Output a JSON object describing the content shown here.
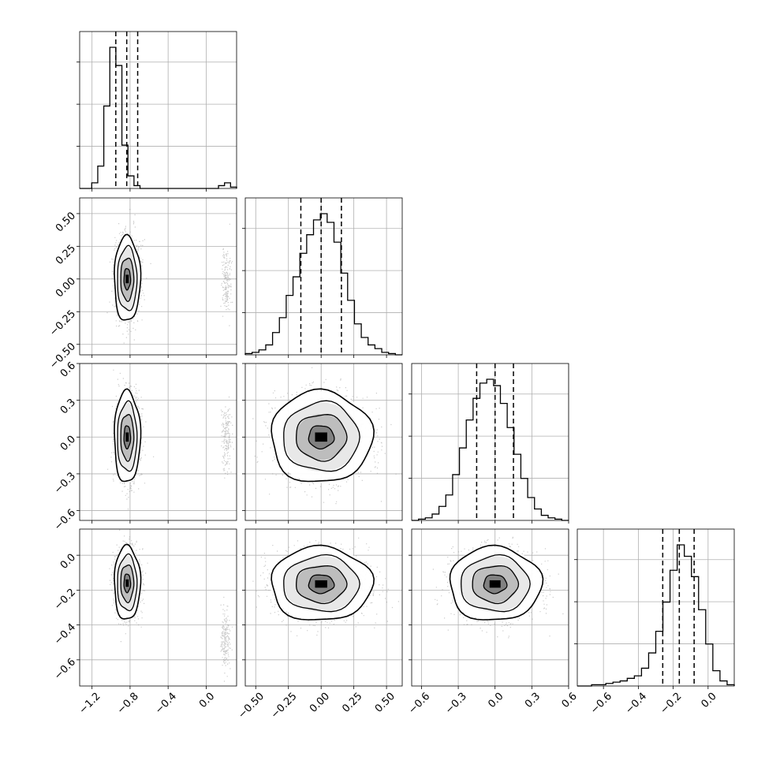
{
  "chart_data": {
    "type": "corner",
    "title": "",
    "parameters": [
      {
        "index": 0,
        "range": [
          -1.33,
          0.32
        ],
        "ticks": [
          -1.2,
          -0.8,
          -0.4,
          0.0
        ],
        "tick_labels": [
          "−1.2",
          "−0.8",
          "−0.4",
          "0.0"
        ],
        "quantiles": [
          -0.95,
          -0.835,
          -0.72
        ],
        "histogram": [
          0,
          0,
          4,
          16,
          59,
          101,
          88,
          31,
          9,
          2,
          0,
          0,
          0,
          0,
          0,
          0,
          0,
          0,
          0,
          0,
          0,
          0,
          0,
          2,
          4,
          1
        ]
      },
      {
        "index": 1,
        "range": [
          -0.58,
          0.62
        ],
        "ticks": [
          -0.5,
          -0.25,
          0.0,
          0.25,
          0.5
        ],
        "tick_labels": [
          "−0.50",
          "−0.25",
          "0.00",
          "0.25",
          "0.50"
        ],
        "quantiles": [
          -0.155,
          0.0,
          0.155
        ],
        "histogram": [
          1,
          2,
          4,
          8,
          18,
          30,
          48,
          63,
          82,
          97,
          109,
          114,
          107,
          91,
          66,
          44,
          25,
          14,
          8,
          5,
          2,
          1,
          0
        ]
      },
      {
        "index": 2,
        "range": [
          -0.68,
          0.6
        ],
        "ticks": [
          -0.6,
          -0.3,
          0.0,
          0.3,
          0.6
        ],
        "tick_labels": [
          "−0.6",
          "−0.3",
          "0.0",
          "0.3",
          "0.6"
        ],
        "quantiles": [
          -0.15,
          0.0,
          0.15
        ],
        "histogram": [
          0,
          1,
          2,
          5,
          11,
          20,
          36,
          57,
          79,
          96,
          108,
          111,
          106,
          92,
          73,
          52,
          33,
          18,
          9,
          4,
          2,
          1,
          0
        ]
      },
      {
        "index": 3,
        "range": [
          -0.75,
          0.15
        ],
        "ticks": [
          -0.6,
          -0.4,
          -0.2,
          0.0
        ],
        "tick_labels": [
          "−0.6",
          "−0.4",
          "−0.2",
          "0.0"
        ],
        "quantiles": [
          -0.26,
          -0.165,
          -0.08
        ],
        "histogram": [
          0,
          0,
          1,
          1,
          2,
          3,
          4,
          6,
          8,
          14,
          26,
          43,
          66,
          91,
          111,
          102,
          86,
          60,
          33,
          12,
          4,
          1
        ]
      }
    ],
    "pairs": [
      {
        "x": 0,
        "y": 1,
        "center": [
          -0.83,
          0.0
        ],
        "sigma": [
          0.055,
          0.13
        ],
        "outlier": {
          "x": 0.21,
          "y": -0.02,
          "sx": 0.025,
          "sy": 0.13,
          "share": 0.03
        }
      },
      {
        "x": 0,
        "y": 2,
        "center": [
          -0.83,
          0.0
        ],
        "sigma": [
          0.055,
          0.15
        ],
        "outlier": {
          "x": 0.21,
          "y": 0.0,
          "sx": 0.025,
          "sy": 0.14,
          "share": 0.03
        }
      },
      {
        "x": 1,
        "y": 2,
        "center": [
          0.0,
          0.0
        ],
        "sigma": [
          0.155,
          0.15
        ]
      },
      {
        "x": 0,
        "y": 3,
        "center": [
          -0.83,
          -0.16
        ],
        "sigma": [
          0.055,
          0.085
        ],
        "outlier": {
          "x": 0.2,
          "y": -0.48,
          "sx": 0.025,
          "sy": 0.08,
          "share": 0.03
        }
      },
      {
        "x": 1,
        "y": 3,
        "center": [
          0.0,
          -0.165
        ],
        "sigma": [
          0.155,
          0.085
        ]
      },
      {
        "x": 2,
        "y": 3,
        "center": [
          0.0,
          -0.165
        ],
        "sigma": [
          0.15,
          0.085
        ]
      }
    ],
    "contour_levels_sigma": [
      0.5,
      1.0,
      1.5,
      2.0
    ],
    "grid": true,
    "legend": "none"
  }
}
